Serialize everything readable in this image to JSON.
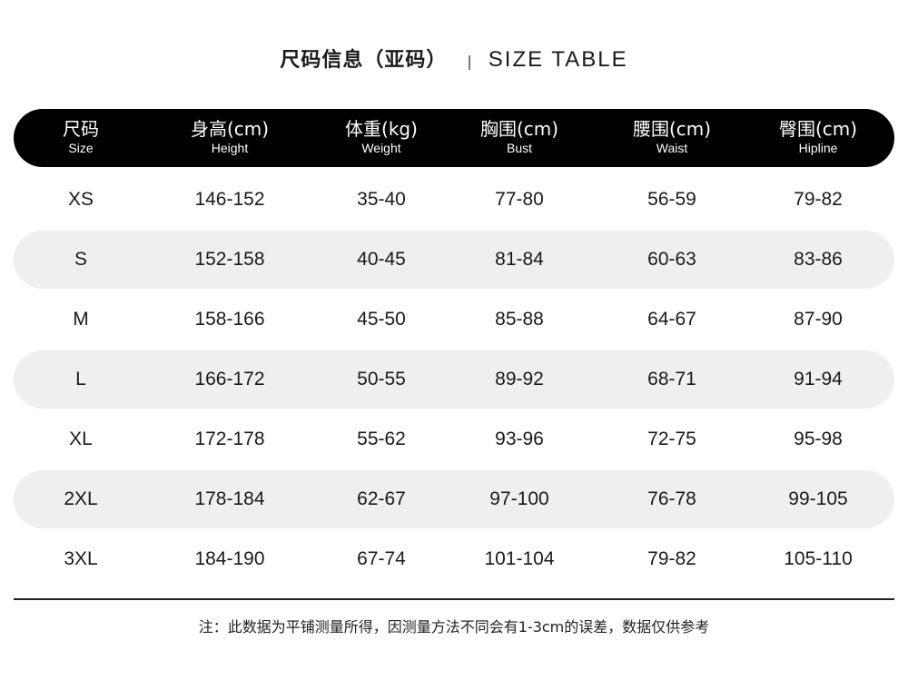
{
  "title": {
    "cn": "尺码信息（亚码）",
    "separator": "|",
    "en": "SIZE TABLE"
  },
  "columns": [
    {
      "cn": "尺码",
      "en": "Size"
    },
    {
      "cn": "身高(cm)",
      "en": "Height"
    },
    {
      "cn": "体重(kg)",
      "en": "Weight"
    },
    {
      "cn": "胸围(cm)",
      "en": "Bust"
    },
    {
      "cn": "腰围(cm)",
      "en": "Waist"
    },
    {
      "cn": "臀围(cm)",
      "en": "Hipline"
    }
  ],
  "rows": [
    [
      "XS",
      "146-152",
      "35-40",
      "77-80",
      "56-59",
      "79-82"
    ],
    [
      "S",
      "152-158",
      "40-45",
      "81-84",
      "60-63",
      "83-86"
    ],
    [
      "M",
      "158-166",
      "45-50",
      "85-88",
      "64-67",
      "87-90"
    ],
    [
      "L",
      "166-172",
      "50-55",
      "89-92",
      "68-71",
      "91-94"
    ],
    [
      "XL",
      "172-178",
      "55-62",
      "93-96",
      "72-75",
      "95-98"
    ],
    [
      "2XL",
      "178-184",
      "62-67",
      "97-100",
      "76-78",
      "99-105"
    ],
    [
      "3XL",
      "184-190",
      "67-74",
      "101-104",
      "79-82",
      "105-110"
    ]
  ],
  "note": "注：此数据为平铺测量所得，因测量方法不同会有1-3cm的误差，数据仅供参考",
  "colors": {
    "header_bg": "#000000",
    "stripe": "#efefef"
  }
}
